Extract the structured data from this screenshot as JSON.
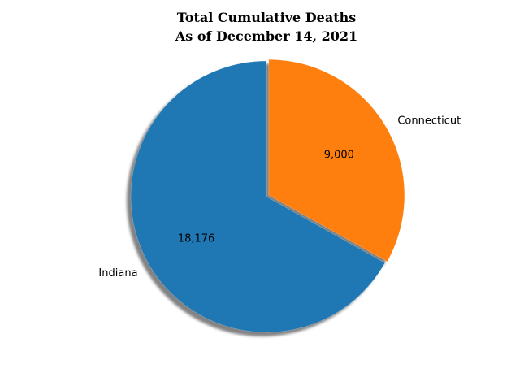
{
  "chart_data": {
    "type": "pie",
    "title": "Total Cumulative Deaths",
    "subtitle": "As of December 14, 2021",
    "categories": [
      "Indiana",
      "Connecticut"
    ],
    "values": [
      18176,
      9000
    ],
    "value_labels": [
      "18,176",
      "9,000"
    ],
    "colors": [
      "#1f77b4",
      "#ff7f0e"
    ],
    "shadow": true,
    "explode": [
      0,
      0.02
    ],
    "start_angle_deg": 90,
    "direction": "counterclockwise",
    "legend": "none"
  }
}
